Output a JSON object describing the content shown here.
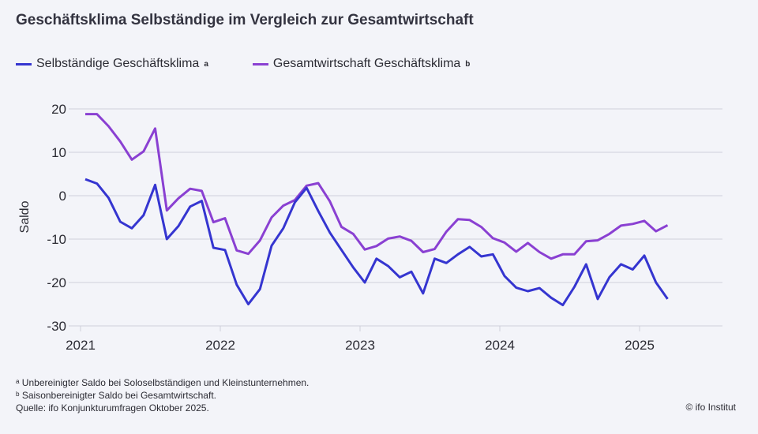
{
  "chart_data": {
    "type": "line",
    "title": "Geschäftsklima Selbständige im Vergleich zur Gesamtwirtschaft",
    "ylabel": "Saldo",
    "xlabel": "",
    "ylim": [
      -30,
      20
    ],
    "yticks": [
      20,
      10,
      0,
      -10,
      -20,
      -30
    ],
    "xticks": [
      "2021",
      "2022",
      "2023",
      "2024",
      "2025"
    ],
    "x_start": "2021-01",
    "x_end": "2025-03",
    "frequency": "monthly",
    "grid": "horizontal",
    "legend_position": "top-left",
    "series": [
      {
        "name": "Selbständige Geschäftsklima",
        "sup": "a",
        "color": "#3535d0",
        "values": [
          3.8,
          2.8,
          -0.5,
          -6,
          -7.5,
          -4.5,
          2.5,
          -10,
          -7,
          -2.5,
          -1.2,
          -12,
          -12.5,
          -20.5,
          -25,
          -21.5,
          -11.5,
          -7.5,
          -1.5,
          1.8,
          -3.5,
          -8.5,
          -12.5,
          -16.5,
          -20,
          -14.5,
          -16.2,
          -18.8,
          -17.5,
          -22.5,
          -14.5,
          -15.5,
          -13.5,
          -11.8,
          -14,
          -13.5,
          -18.5,
          -21.2,
          -22,
          -21.3,
          -23.5,
          -25.2,
          -21,
          -15.8,
          -23.8,
          -18.8,
          -15.8,
          -17,
          -13.8,
          -20,
          -23.8
        ]
      },
      {
        "name": "Gesamtwirtschaft Geschäftsklima",
        "sup": "b",
        "color": "#8a40d2",
        "values": [
          18.8,
          18.8,
          16,
          12.5,
          8.3,
          10.2,
          15.5,
          -3.4,
          -0.6,
          1.6,
          1.1,
          -6.1,
          -5.2,
          -12.6,
          -13.4,
          -10.3,
          -5,
          -2.3,
          -1,
          2.3,
          2.9,
          -1.3,
          -7.2,
          -8.8,
          -12.4,
          -11.6,
          -9.9,
          -9.4,
          -10.4,
          -13,
          -12.3,
          -8.3,
          -5.4,
          -5.6,
          -7.2,
          -9.8,
          -10.8,
          -12.9,
          -10.9,
          -13,
          -14.5,
          -13.5,
          -13.5,
          -10.5,
          -10.3,
          -8.8,
          -6.9,
          -6.5,
          -5.8,
          -8.2,
          -6.8
        ]
      }
    ]
  },
  "footnotes": [
    "ᵃ Unbereinigter Saldo bei Soloselbständigen und Kleinstunternehmen.",
    "ᵇ Saisonbereinigter Saldo bei Gesamtwirtschaft.",
    "Quelle: ifo Konjunkturumfragen Oktober 2025."
  ],
  "copyright": "© ifo Institut"
}
